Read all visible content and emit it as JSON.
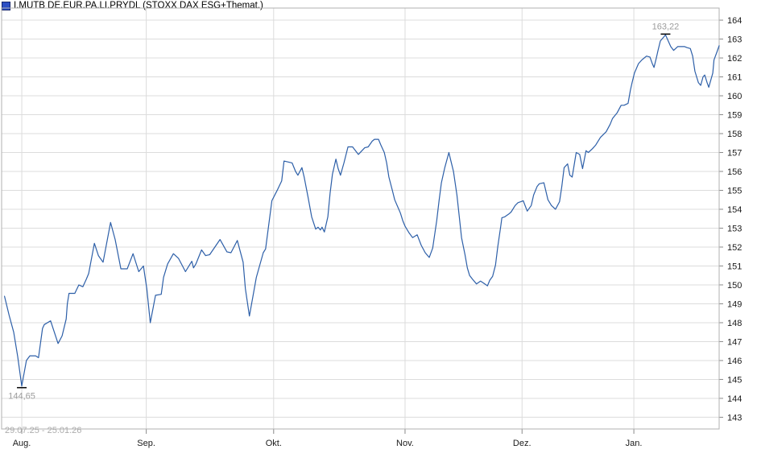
{
  "header": {
    "title": "I.MUTB DE.EUR.PA.LI.PRYDL (STOXX DAX ESG+Themat.)"
  },
  "footer": {
    "date_range": "29.07.25 - 25.01.26"
  },
  "colors": {
    "line": "#2d5fa8",
    "grid": "#dcdcdc",
    "border": "#b0b0b0",
    "tick": "#8a8a8a",
    "axis_text": "#1a1a1a",
    "annotation_text": "#9c9c9c",
    "marker": "#000000",
    "legend_fill": "#2d4fc4",
    "legend_border": "#15266e",
    "background": "#ffffff"
  },
  "chart_data": {
    "type": "line",
    "title": "I.MUTB DE.EUR.PA.LI.PRYDL (STOXX DAX ESG+Themat.)",
    "period_label": "29.07.25 - 25.01.26",
    "legend": [
      {
        "name": "I.MUTB DE.EUR.PA.LI.PRYDL (STOXX DAX ESG+Themat.)",
        "marker": "blue-square",
        "color": "#2d5fa8"
      }
    ],
    "x_axis": {
      "unit": "trading_days_since_2025-07-29",
      "range": [
        -0.5,
        124
      ],
      "grid": true,
      "ticks": [
        {
          "label": "Aug.",
          "x": 3
        },
        {
          "label": "Sep.",
          "x": 24.6
        },
        {
          "label": "Okt.",
          "x": 46.7
        },
        {
          "label": "Nov.",
          "x": 69.5
        },
        {
          "label": "Dez.",
          "x": 89.8
        },
        {
          "label": "Jan.",
          "x": 109.2
        }
      ]
    },
    "y_axis": {
      "side": "right",
      "range": [
        142.38,
        164.64
      ],
      "tick_step": 1,
      "grid": true,
      "ticks": [
        143,
        144,
        145,
        146,
        147,
        148,
        149,
        150,
        151,
        152,
        153,
        154,
        155,
        156,
        157,
        158,
        159,
        160,
        161,
        162,
        163,
        164
      ]
    },
    "series": [
      {
        "name": "I.MUTB DE.EUR.PA.LI.PRYDL (STOXX DAX ESG+Themat.)",
        "color": "#2d5fa8",
        "points": [
          [
            0,
            149.4
          ],
          [
            0.8,
            148.4
          ],
          [
            1.6,
            147.5
          ],
          [
            2.3,
            146.2
          ],
          [
            3,
            144.65
          ],
          [
            3.8,
            146.0
          ],
          [
            4.4,
            146.25
          ],
          [
            5.4,
            146.25
          ],
          [
            5.9,
            146.15
          ],
          [
            6.6,
            147.7
          ],
          [
            6.9,
            147.9
          ],
          [
            8,
            148.1
          ],
          [
            9.3,
            146.9
          ],
          [
            10,
            147.3
          ],
          [
            10.7,
            148.2
          ],
          [
            10.9,
            149.0
          ],
          [
            11.2,
            149.55
          ],
          [
            12.2,
            149.55
          ],
          [
            12.9,
            150.0
          ],
          [
            13.6,
            149.9
          ],
          [
            14.2,
            150.3
          ],
          [
            14.6,
            150.6
          ],
          [
            15.6,
            152.2
          ],
          [
            16.3,
            151.55
          ],
          [
            17.1,
            151.2
          ],
          [
            18.4,
            153.3
          ],
          [
            19.2,
            152.4
          ],
          [
            20.2,
            150.85
          ],
          [
            21.3,
            150.85
          ],
          [
            22.3,
            151.65
          ],
          [
            23.3,
            150.7
          ],
          [
            24.1,
            151.0
          ],
          [
            24.7,
            149.8
          ],
          [
            25.3,
            148.0
          ],
          [
            25.8,
            148.8
          ],
          [
            26.2,
            149.45
          ],
          [
            27.2,
            149.5
          ],
          [
            27.6,
            150.4
          ],
          [
            28.3,
            151.1
          ],
          [
            29.3,
            151.65
          ],
          [
            30.2,
            151.4
          ],
          [
            31.4,
            150.7
          ],
          [
            32.1,
            151.05
          ],
          [
            32.5,
            151.25
          ],
          [
            32.8,
            150.9
          ],
          [
            33.2,
            151.1
          ],
          [
            34.2,
            151.85
          ],
          [
            34.9,
            151.55
          ],
          [
            35.6,
            151.6
          ],
          [
            37.4,
            152.4
          ],
          [
            38.6,
            151.75
          ],
          [
            39.3,
            151.7
          ],
          [
            40.4,
            152.35
          ],
          [
            41.4,
            151.2
          ],
          [
            41.8,
            149.8
          ],
          [
            42.5,
            148.35
          ],
          [
            43.7,
            150.4
          ],
          [
            44.9,
            151.7
          ],
          [
            45.3,
            151.9
          ],
          [
            46.4,
            154.45
          ],
          [
            47.4,
            155.05
          ],
          [
            48.1,
            155.5
          ],
          [
            48.5,
            156.55
          ],
          [
            49.9,
            156.45
          ],
          [
            50.5,
            156.0
          ],
          [
            50.9,
            155.8
          ],
          [
            51.6,
            156.2
          ],
          [
            52,
            155.7
          ],
          [
            52.7,
            154.6
          ],
          [
            53.3,
            153.6
          ],
          [
            54,
            152.95
          ],
          [
            54.4,
            153.05
          ],
          [
            54.8,
            152.9
          ],
          [
            55.1,
            153.05
          ],
          [
            55.5,
            152.8
          ],
          [
            56.1,
            153.6
          ],
          [
            56.5,
            154.85
          ],
          [
            56.9,
            155.85
          ],
          [
            57.5,
            156.65
          ],
          [
            57.9,
            156.15
          ],
          [
            58.3,
            155.8
          ],
          [
            58.9,
            156.45
          ],
          [
            59.6,
            157.3
          ],
          [
            60.4,
            157.3
          ],
          [
            61.4,
            156.9
          ],
          [
            62.5,
            157.25
          ],
          [
            63.1,
            157.3
          ],
          [
            63.8,
            157.6
          ],
          [
            64.2,
            157.7
          ],
          [
            64.9,
            157.7
          ],
          [
            65.3,
            157.4
          ],
          [
            65.9,
            157.0
          ],
          [
            66.3,
            156.45
          ],
          [
            66.7,
            155.7
          ],
          [
            67.3,
            155.0
          ],
          [
            67.7,
            154.5
          ],
          [
            68.7,
            153.8
          ],
          [
            69.1,
            153.4
          ],
          [
            69.5,
            153.1
          ],
          [
            70.2,
            152.75
          ],
          [
            70.8,
            152.5
          ],
          [
            71.6,
            152.65
          ],
          [
            72.3,
            152.1
          ],
          [
            73,
            151.7
          ],
          [
            73.7,
            151.45
          ],
          [
            74.3,
            151.95
          ],
          [
            75,
            153.4
          ],
          [
            75.4,
            154.45
          ],
          [
            75.8,
            155.4
          ],
          [
            76.4,
            156.2
          ],
          [
            77.1,
            157.0
          ],
          [
            77.5,
            156.5
          ],
          [
            77.9,
            156.0
          ],
          [
            78.5,
            154.75
          ],
          [
            78.9,
            153.65
          ],
          [
            79.3,
            152.5
          ],
          [
            79.9,
            151.6
          ],
          [
            80.3,
            150.9
          ],
          [
            80.7,
            150.5
          ],
          [
            81.2,
            150.3
          ],
          [
            81.9,
            150.05
          ],
          [
            82.6,
            150.2
          ],
          [
            83.1,
            150.1
          ],
          [
            83.8,
            149.95
          ],
          [
            84.2,
            150.25
          ],
          [
            84.7,
            150.45
          ],
          [
            85.2,
            151.05
          ],
          [
            85.6,
            152.05
          ],
          [
            86.1,
            153.1
          ],
          [
            86.3,
            153.55
          ],
          [
            86.8,
            153.6
          ],
          [
            87.5,
            153.75
          ],
          [
            87.9,
            153.85
          ],
          [
            88.6,
            154.2
          ],
          [
            89.1,
            154.35
          ],
          [
            89.6,
            154.4
          ],
          [
            90,
            154.45
          ],
          [
            90.7,
            153.9
          ],
          [
            91.4,
            154.2
          ],
          [
            91.8,
            154.75
          ],
          [
            92.4,
            155.2
          ],
          [
            92.8,
            155.35
          ],
          [
            93.6,
            155.4
          ],
          [
            94.3,
            154.5
          ],
          [
            94.9,
            154.2
          ],
          [
            95.6,
            154.0
          ],
          [
            96.3,
            154.4
          ],
          [
            96.7,
            155.2
          ],
          [
            97.1,
            156.2
          ],
          [
            97.7,
            156.4
          ],
          [
            98.1,
            155.8
          ],
          [
            98.5,
            155.7
          ],
          [
            99.2,
            157.0
          ],
          [
            99.8,
            156.9
          ],
          [
            100.3,
            156.15
          ],
          [
            100.9,
            157.1
          ],
          [
            101.3,
            157.0
          ],
          [
            102,
            157.2
          ],
          [
            102.6,
            157.4
          ],
          [
            103.4,
            157.8
          ],
          [
            104.4,
            158.1
          ],
          [
            105.1,
            158.5
          ],
          [
            105.5,
            158.8
          ],
          [
            106.3,
            159.1
          ],
          [
            107,
            159.5
          ],
          [
            107.5,
            159.5
          ],
          [
            108.2,
            159.6
          ],
          [
            108.6,
            160.3
          ],
          [
            108.9,
            160.7
          ],
          [
            109.3,
            161.2
          ],
          [
            110,
            161.7
          ],
          [
            110.6,
            161.9
          ],
          [
            111,
            162.0
          ],
          [
            111.4,
            162.1
          ],
          [
            112,
            162.05
          ],
          [
            112.4,
            161.7
          ],
          [
            112.7,
            161.5
          ],
          [
            113.1,
            162.0
          ],
          [
            113.4,
            162.4
          ],
          [
            113.8,
            162.9
          ],
          [
            114.7,
            163.22
          ],
          [
            115.6,
            162.6
          ],
          [
            116.1,
            162.4
          ],
          [
            116.8,
            162.6
          ],
          [
            118,
            162.6
          ],
          [
            118.4,
            162.55
          ],
          [
            119,
            162.5
          ],
          [
            119.4,
            162.1
          ],
          [
            119.8,
            161.3
          ],
          [
            120.4,
            160.7
          ],
          [
            120.8,
            160.55
          ],
          [
            121.2,
            161.0
          ],
          [
            121.5,
            161.1
          ],
          [
            121.9,
            160.7
          ],
          [
            122.2,
            160.45
          ],
          [
            122.9,
            161.2
          ],
          [
            123.1,
            161.9
          ],
          [
            123.6,
            162.3
          ],
          [
            124,
            162.65
          ]
        ]
      }
    ],
    "annotations": [
      {
        "type": "high",
        "label": "163,22",
        "x": 114.7,
        "value": 163.22
      },
      {
        "type": "low",
        "label": "144,65",
        "x": 3,
        "value": 144.65
      }
    ]
  }
}
